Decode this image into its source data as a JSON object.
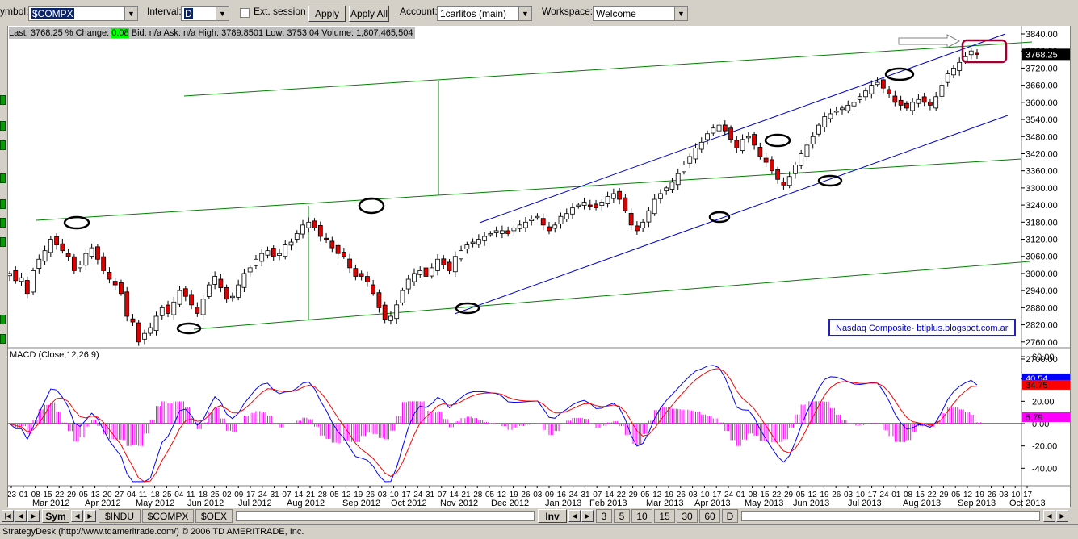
{
  "toolbar": {
    "symbol_label": "ymbol:",
    "symbol_value": "$COMPX",
    "interval_label": "Interval:",
    "interval_value": "D",
    "ext_session_label": "Ext. session",
    "apply_label": "Apply",
    "apply_all_label": "Apply All",
    "account_label": "Account:",
    "account_value": "1carlitos (main)",
    "workspace_label": "Workspace:",
    "workspace_value": "Welcome"
  },
  "quote": {
    "last_label": "Last:",
    "last": "3768.25",
    "change_label": "% Change:",
    "change": "0.08",
    "bid_label": "Bid:",
    "bid": "n/a",
    "ask_label": "Ask:",
    "ask": "n/a",
    "high_label": "High:",
    "high": "3789.8501",
    "low_label": "Low:",
    "low": "3753.04",
    "volume_label": "Volume:",
    "volume": "1,807,465,504"
  },
  "chart_data": [
    {
      "type": "candlestick",
      "annotation": "Nasdaq Composite- btlplus.blogspot.com.ar",
      "last_price_label": "3768.25",
      "y_ticks": [
        "3840.00",
        "3780.00",
        "3720.00",
        "3660.00",
        "3600.00",
        "3540.00",
        "3480.00",
        "3420.00",
        "3360.00",
        "3300.00",
        "3240.00",
        "3180.00",
        "3120.00",
        "3060.00",
        "3000.00",
        "2940.00",
        "2880.00",
        "2820.00",
        "2760.00",
        "2700.00"
      ],
      "ylim": [
        2680,
        3860
      ],
      "x_day_ticks": [
        "23",
        "01",
        "08",
        "15",
        "22",
        "29",
        "05",
        "13",
        "20",
        "27",
        "04",
        "11",
        "18",
        "25",
        "04",
        "11",
        "18",
        "25",
        "02",
        "09",
        "17",
        "24",
        "31",
        "07",
        "14",
        "21",
        "28",
        "05",
        "12",
        "19",
        "26",
        "03",
        "10",
        "17",
        "24",
        "31",
        "07",
        "14",
        "21",
        "28",
        "05",
        "12",
        "19",
        "26",
        "03",
        "09",
        "16",
        "24",
        "31",
        "07",
        "14",
        "22",
        "29",
        "05",
        "12",
        "19",
        "26",
        "03",
        "10",
        "17",
        "24",
        "01",
        "08",
        "15",
        "22",
        "29",
        "05",
        "12",
        "19",
        "26",
        "03",
        "10",
        "17",
        "24",
        "01",
        "08",
        "15",
        "22",
        "29",
        "05",
        "12",
        "19",
        "26",
        "03",
        "10",
        "17"
      ],
      "x_month_ticks": [
        "Mar 2012",
        "Apr 2012",
        "May 2012",
        "Jun 2012",
        "Jul 2012",
        "Aug 2012",
        "Sep 2012",
        "Oct 2012",
        "Nov 2012",
        "Dec 2012",
        "Jan 2013",
        "Feb 2013",
        "Mar 2013",
        "Apr 2013",
        "May 2013",
        "Jun 2013",
        "Jul 2013",
        "Aug 2013",
        "Sep 2013",
        "Oct 2013"
      ],
      "close_path": [
        3000,
        2975,
        2985,
        2930,
        3010,
        3050,
        3080,
        3120,
        3100,
        3080,
        3060,
        3010,
        3030,
        3070,
        3090,
        3050,
        3010,
        2980,
        2960,
        2930,
        2850,
        2830,
        2760,
        2790,
        2810,
        2850,
        2880,
        2860,
        2900,
        2940,
        2920,
        2890,
        2860,
        2910,
        2960,
        2990,
        2950,
        2910,
        2920,
        2960,
        3000,
        3020,
        3050,
        3070,
        3080,
        3060,
        3070,
        3100,
        3110,
        3140,
        3170,
        3180,
        3160,
        3130,
        3120,
        3090,
        3070,
        3060,
        3020,
        2990,
        2990,
        2970,
        2930,
        2880,
        2840,
        2850,
        2890,
        2940,
        2980,
        3000,
        3010,
        2990,
        3020,
        3050,
        3030,
        3010,
        3060,
        3080,
        3100,
        3110,
        3120,
        3130,
        3140,
        3150,
        3150,
        3140,
        3160,
        3170,
        3180,
        3190,
        3200,
        3170,
        3150,
        3170,
        3200,
        3210,
        3230,
        3240,
        3250,
        3240,
        3230,
        3250,
        3270,
        3280,
        3260,
        3220,
        3170,
        3150,
        3180,
        3220,
        3260,
        3280,
        3300,
        3320,
        3350,
        3380,
        3410,
        3440,
        3460,
        3490,
        3510,
        3520,
        3500,
        3470,
        3440,
        3470,
        3480,
        3450,
        3410,
        3390,
        3360,
        3330,
        3310,
        3340,
        3380,
        3420,
        3450,
        3480,
        3520,
        3550,
        3560,
        3570,
        3580,
        3590,
        3600,
        3620,
        3640,
        3660,
        3670,
        3650,
        3630,
        3600,
        3590,
        3580,
        3600,
        3610,
        3600,
        3590,
        3620,
        3660,
        3700,
        3720,
        3740,
        3760,
        3780,
        3768.25
      ]
    },
    {
      "type": "line",
      "title": "MACD (Close,12,26,9)",
      "y_ticks": [
        "60.00",
        "40.00",
        "20.00",
        "0.00",
        "-20.00",
        "-40.00"
      ],
      "ylim": [
        -55,
        65
      ],
      "last_values": {
        "macd": "40.54",
        "signal": "34.75",
        "histogram": "5.79"
      },
      "colors": {
        "macd": "#0000ff",
        "signal": "#ff0000",
        "histogram": "#ff00ff"
      }
    }
  ],
  "tabs": {
    "sym": "Sym",
    "symbols": [
      "$INDU",
      "$COMPX",
      "$OEX"
    ],
    "inv": "Inv",
    "intervals": [
      "3",
      "5",
      "10",
      "15",
      "30",
      "60",
      "D"
    ]
  },
  "status": "StrategyDesk (http://www.tdameritrade.com/) © 2006 TD AMERITRADE, Inc."
}
